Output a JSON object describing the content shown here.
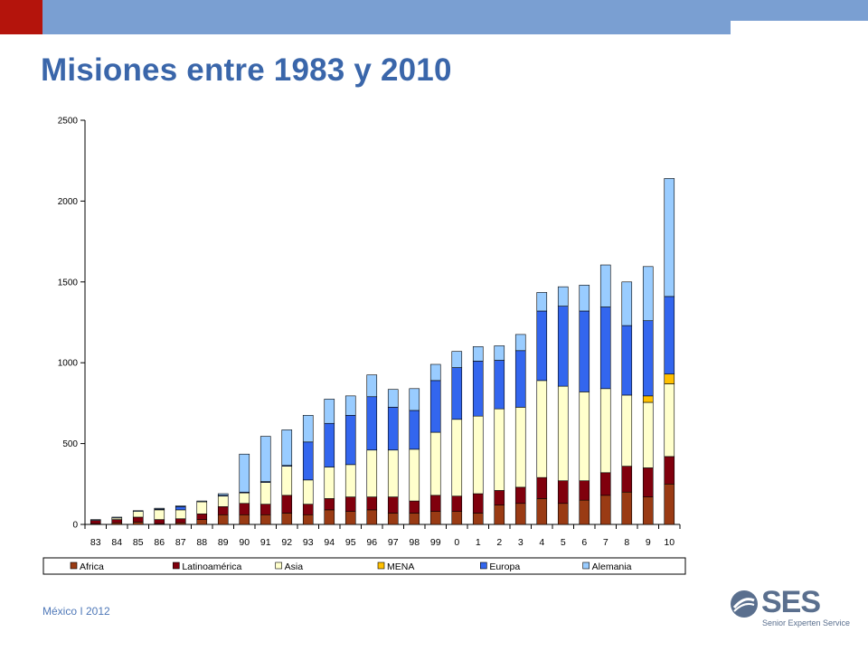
{
  "title": "Misiones entre 1983 y 2010",
  "footer": "México I 2012",
  "logo": {
    "word": "SES",
    "subtitle": "Senior Experten Service"
  },
  "colors": {
    "header_red": "#b4140c",
    "header_blue": "#7a9fd2",
    "title_blue": "#3a66aa"
  },
  "chart_data": {
    "type": "bar",
    "stacked": true,
    "categories": [
      "83",
      "84",
      "85",
      "86",
      "87",
      "88",
      "89",
      "90",
      "91",
      "92",
      "93",
      "94",
      "95",
      "96",
      "97",
      "98",
      "99",
      "0",
      "1",
      "2",
      "3",
      "4",
      "5",
      "6",
      "7",
      "8",
      "9",
      "10"
    ],
    "yticks": [
      "0",
      "500",
      "1000",
      "1500",
      "2000",
      "2500"
    ],
    "ylim": [
      0,
      2500
    ],
    "grid": false,
    "legend_position": "bottom",
    "series": [
      {
        "name": "Africa",
        "color": "#9a3b14",
        "values": [
          5,
          10,
          15,
          5,
          10,
          30,
          60,
          60,
          60,
          70,
          60,
          90,
          80,
          90,
          70,
          70,
          80,
          80,
          70,
          120,
          130,
          160,
          130,
          150,
          180,
          200,
          170,
          250
        ]
      },
      {
        "name": "Latinoamérica",
        "color": "#80000d",
        "values": [
          20,
          20,
          30,
          25,
          25,
          35,
          50,
          70,
          65,
          110,
          65,
          70,
          90,
          80,
          100,
          75,
          100,
          95,
          120,
          90,
          100,
          130,
          140,
          120,
          140,
          160,
          180,
          170
        ]
      },
      {
        "name": "Asia",
        "color": "#ffffcc",
        "values": [
          0,
          10,
          35,
          60,
          55,
          75,
          65,
          65,
          135,
          180,
          150,
          195,
          200,
          290,
          290,
          320,
          390,
          475,
          480,
          505,
          495,
          600,
          585,
          550,
          520,
          440,
          405,
          450
        ]
      },
      {
        "name": "MENA",
        "color": "#ffc000",
        "values": [
          0,
          0,
          0,
          0,
          0,
          0,
          0,
          0,
          0,
          0,
          0,
          0,
          0,
          0,
          0,
          0,
          0,
          0,
          0,
          0,
          0,
          0,
          0,
          0,
          0,
          0,
          40,
          60
        ]
      },
      {
        "name": "Europa",
        "color": "#3366ee",
        "values": [
          0,
          0,
          0,
          5,
          20,
          0,
          5,
          5,
          5,
          5,
          235,
          270,
          305,
          330,
          265,
          240,
          320,
          320,
          340,
          300,
          350,
          430,
          495,
          500,
          505,
          430,
          465,
          480
        ]
      },
      {
        "name": "Alemania",
        "color": "#99ccff",
        "values": [
          5,
          5,
          5,
          5,
          5,
          5,
          10,
          235,
          280,
          220,
          165,
          150,
          120,
          135,
          110,
          135,
          100,
          100,
          90,
          90,
          100,
          115,
          120,
          160,
          260,
          270,
          335,
          730
        ]
      }
    ]
  }
}
